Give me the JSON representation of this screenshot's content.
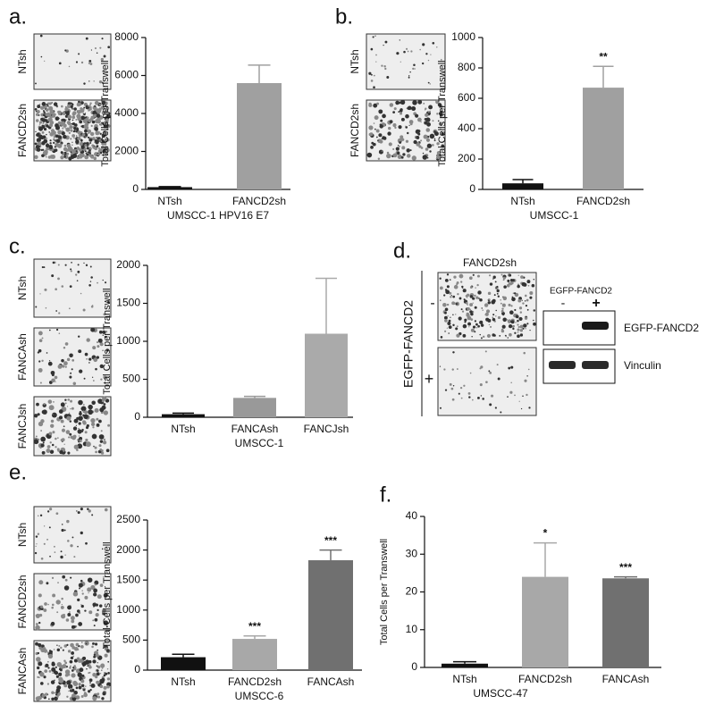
{
  "figure": {
    "panels": [
      "a.",
      "b.",
      "c.",
      "d.",
      "e."
    ],
    "image_labels_a": [
      "NTsh",
      "FANCD2sh"
    ],
    "image_labels_b": [
      "NTsh",
      "FANCD2sh"
    ],
    "image_labels_c": [
      "NTsh",
      "FANCAsh",
      "FANCJsh"
    ],
    "image_labels_e": [
      "NTsh",
      "FANCD2sh",
      "FANCAsh"
    ],
    "panel_d": {
      "title": "FANCD2sh",
      "side_label": "EGFP-FANCD2",
      "rows": [
        "-",
        "+"
      ],
      "blot_header": "EGFP-FANCD2",
      "blot_lanes": [
        "-",
        "+"
      ],
      "bands": [
        "EGFP-FANCD2",
        "Vinculin"
      ]
    }
  },
  "chart_data": [
    {
      "type": "bar",
      "panel_label": "a.",
      "ylabel": "Total Cells per Transwell",
      "xlabel": "UMSCC-1 HPV16 E7",
      "categories": [
        "NTsh",
        "FANCD2sh"
      ],
      "values": [
        120,
        5600
      ],
      "errors": [
        30,
        950
      ],
      "colors": [
        "#111111",
        "#a0a0a0"
      ],
      "ylim": [
        0,
        8000
      ],
      "yticks": [
        0,
        2000,
        4000,
        6000,
        8000
      ]
    },
    {
      "type": "bar",
      "panel_label": "b.",
      "ylabel": "Total Cells per Transwell",
      "xlabel": "UMSCC-1",
      "categories": [
        "NTsh",
        "FANCD2sh"
      ],
      "values": [
        40,
        670
      ],
      "errors": [
        25,
        140
      ],
      "annotations": [
        null,
        "**"
      ],
      "colors": [
        "#111111",
        "#a0a0a0"
      ],
      "ylim": [
        0,
        1000
      ],
      "yticks": [
        0,
        200,
        400,
        600,
        800,
        1000
      ]
    },
    {
      "type": "bar",
      "panel_label": "c.",
      "ylabel": "Total Cells per Transwell",
      "xlabel": "UMSCC-1",
      "categories": [
        "NTsh",
        "FANCAsh",
        "FANCJsh"
      ],
      "values": [
        40,
        255,
        1100
      ],
      "errors": [
        15,
        20,
        730
      ],
      "colors": [
        "#111111",
        "#999999",
        "#aaaaaa"
      ],
      "ylim": [
        0,
        2000
      ],
      "yticks": [
        0,
        500,
        1000,
        1500,
        2000
      ]
    },
    {
      "type": "bar",
      "panel_label": "e.",
      "ylabel": "Total Cells per Transwell",
      "xlabel": "UMSCC-6",
      "categories": [
        "NTsh",
        "FANCD2sh",
        "FANCAsh"
      ],
      "values": [
        215,
        520,
        1830
      ],
      "errors": [
        50,
        50,
        170
      ],
      "annotations": [
        null,
        "***",
        "***"
      ],
      "colors": [
        "#111111",
        "#a8a8a8",
        "#707070"
      ],
      "ylim": [
        0,
        2500
      ],
      "yticks": [
        0,
        500,
        1000,
        1500,
        2000,
        2500
      ]
    },
    {
      "type": "bar",
      "panel_label": "f.",
      "ylabel": "Total Cells per Transwell",
      "xlabel": "UMSCC-47",
      "categories": [
        "NTsh",
        "FANCD2sh",
        "FANCAsh"
      ],
      "values": [
        1,
        24,
        23.6
      ],
      "errors": [
        0.5,
        9,
        0.4
      ],
      "annotations": [
        null,
        "*",
        "***"
      ],
      "colors": [
        "#111111",
        "#a8a8a8",
        "#707070"
      ],
      "ylim": [
        0,
        40
      ],
      "yticks": [
        0,
        10,
        20,
        30,
        40
      ]
    }
  ]
}
